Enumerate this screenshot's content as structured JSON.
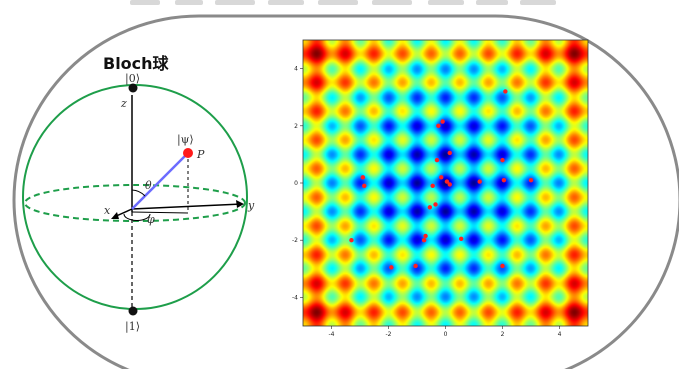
{
  "bloch": {
    "title": "Bloch球",
    "ket0": "|0⟩",
    "ket1": "|1⟩",
    "ketpsi": "|ψ⟩",
    "axis_x": "x",
    "axis_y": "y",
    "axis_z": "z",
    "point_label": "P",
    "theta": "θ",
    "phi": "φ",
    "colors": {
      "sphere": "#1e9e4a",
      "state_vector": "#6b6bff",
      "state_point": "#ff1a1a"
    }
  },
  "chart_data": {
    "type": "heatmap",
    "colormap": "jet",
    "xlim": [
      -5,
      5
    ],
    "ylim": [
      -5,
      5
    ],
    "xticks": [
      "-4",
      "-2",
      "0",
      "2",
      "4"
    ],
    "yticks": [
      "4",
      "2",
      "0",
      "-2",
      "-4"
    ],
    "grid": false,
    "points_color": "#ff2020",
    "points": [
      {
        "x": 2.1,
        "y": 3.2
      },
      {
        "x": -0.1,
        "y": 2.15
      },
      {
        "x": -0.25,
        "y": 2.0
      },
      {
        "x": 0.15,
        "y": 1.05
      },
      {
        "x": -0.3,
        "y": 0.8
      },
      {
        "x": 2.0,
        "y": 0.8
      },
      {
        "x": -2.9,
        "y": 0.2
      },
      {
        "x": -2.85,
        "y": -0.1
      },
      {
        "x": -0.15,
        "y": 0.2
      },
      {
        "x": 0.05,
        "y": 0.05
      },
      {
        "x": 0.15,
        "y": -0.05
      },
      {
        "x": -0.45,
        "y": -0.1
      },
      {
        "x": 1.2,
        "y": 0.05
      },
      {
        "x": 2.05,
        "y": 0.1
      },
      {
        "x": 3.0,
        "y": 0.1
      },
      {
        "x": -0.55,
        "y": -0.85
      },
      {
        "x": -0.35,
        "y": -0.75
      },
      {
        "x": -0.7,
        "y": -1.85
      },
      {
        "x": -0.75,
        "y": -2.0
      },
      {
        "x": 0.55,
        "y": -1.95
      },
      {
        "x": 2.0,
        "y": -2.9
      },
      {
        "x": -1.9,
        "y": -2.95
      },
      {
        "x": -1.05,
        "y": -2.9
      },
      {
        "x": -3.3,
        "y": -2.0
      }
    ]
  }
}
